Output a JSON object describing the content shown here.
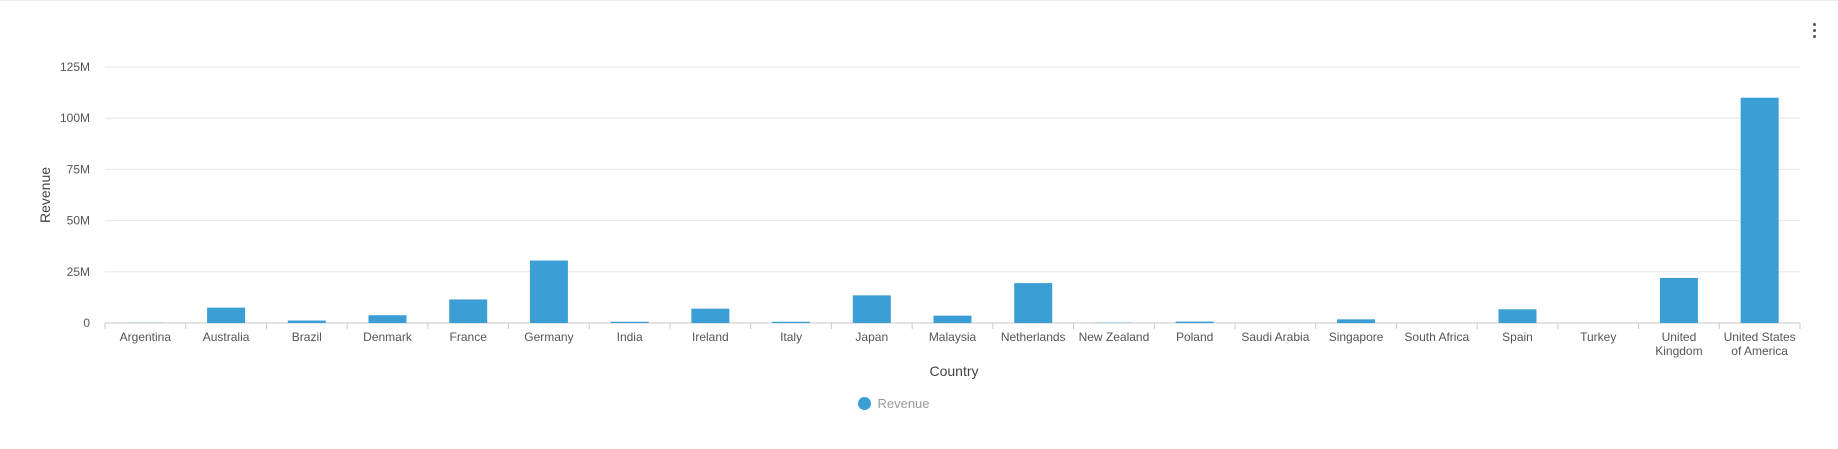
{
  "menu": {
    "icon": "more-vert-icon"
  },
  "colors": {
    "bar": "#3b9fd6",
    "grid": "#e6e6e6",
    "axis": "#c9c9c9"
  },
  "chart_data": {
    "type": "bar",
    "title": "",
    "xlabel": "Country",
    "ylabel": "Revenue",
    "ylim": [
      0,
      125000000
    ],
    "yticks": [
      {
        "value": 0,
        "label": "0"
      },
      {
        "value": 25000000,
        "label": "25M"
      },
      {
        "value": 50000000,
        "label": "50M"
      },
      {
        "value": 75000000,
        "label": "75M"
      },
      {
        "value": 100000000,
        "label": "100M"
      },
      {
        "value": 125000000,
        "label": "125M"
      }
    ],
    "grid": true,
    "legend_position": "bottom",
    "categories": [
      [
        "Argentina"
      ],
      [
        "Australia"
      ],
      [
        "Brazil"
      ],
      [
        "Denmark"
      ],
      [
        "France"
      ],
      [
        "Germany"
      ],
      [
        "India"
      ],
      [
        "Ireland"
      ],
      [
        "Italy"
      ],
      [
        "Japan"
      ],
      [
        "Malaysia"
      ],
      [
        "Netherlands"
      ],
      [
        "New Zealand"
      ],
      [
        "Poland"
      ],
      [
        "Saudi Arabia"
      ],
      [
        "Singapore"
      ],
      [
        "South Africa"
      ],
      [
        "Spain"
      ],
      [
        "Turkey"
      ],
      [
        "United",
        "Kingdom"
      ],
      [
        "United States",
        "of America"
      ]
    ],
    "series": [
      {
        "name": "Revenue",
        "values": [
          100000,
          7500000,
          1200000,
          3800000,
          11500000,
          30500000,
          600000,
          7000000,
          600000,
          13500000,
          3600000,
          19500000,
          150000,
          700000,
          0,
          1800000,
          0,
          6700000,
          0,
          22000000,
          110000000
        ]
      }
    ]
  }
}
